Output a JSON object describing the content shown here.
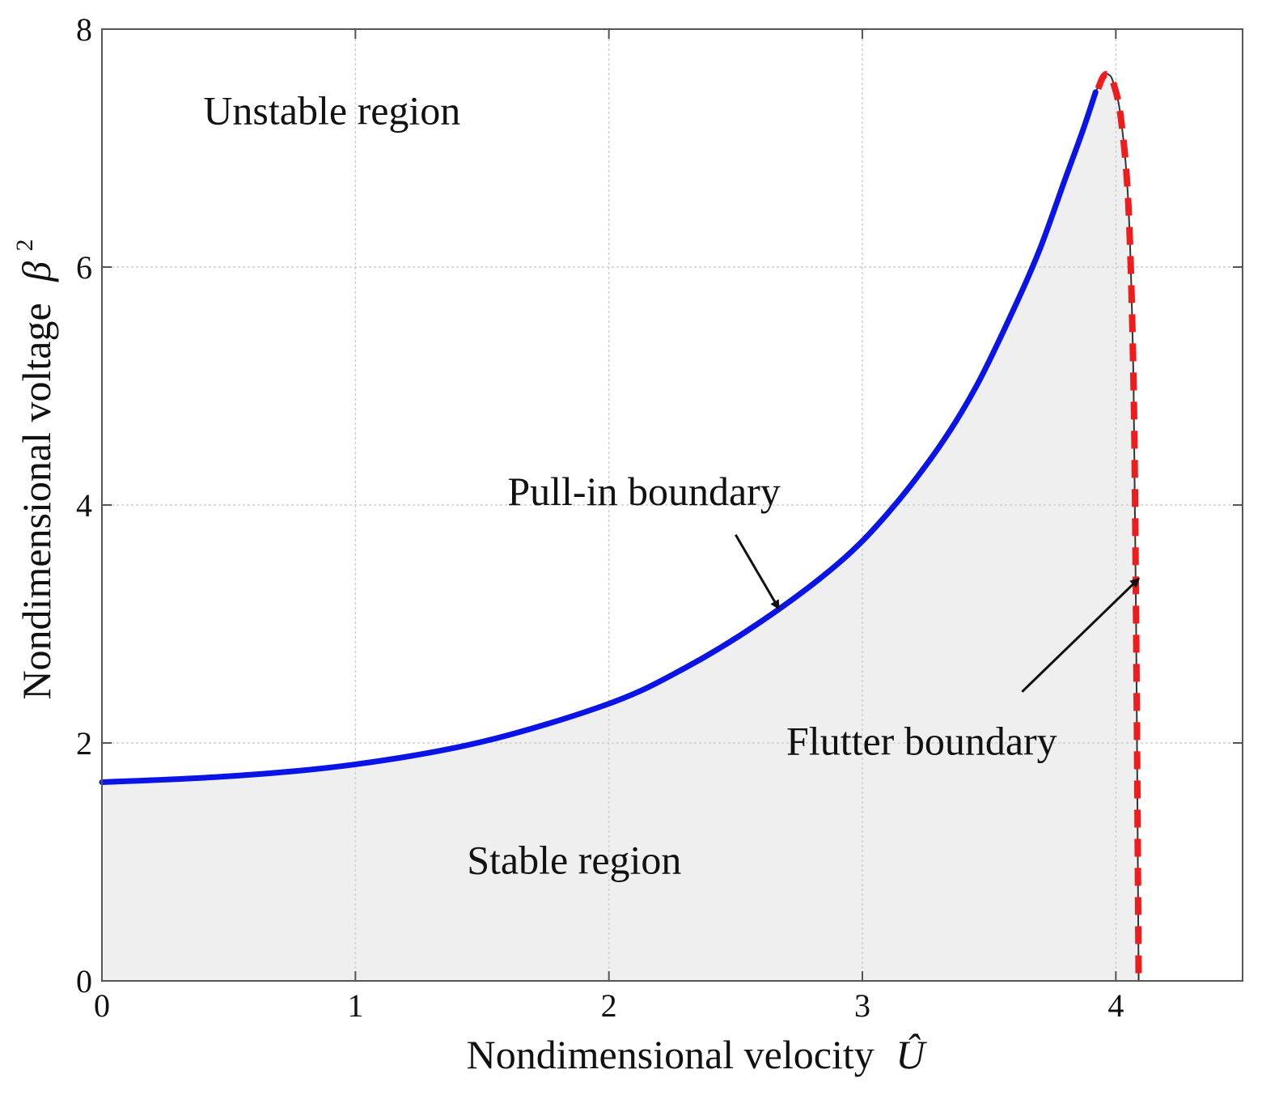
{
  "chart_data": {
    "type": "line",
    "title": "",
    "xlabel": "Nondimensional velocity",
    "xlabel_symbol": "Û",
    "ylabel": "Nondimensional voltage",
    "ylabel_symbol": "β",
    "ylabel_superscript": "2",
    "xlim": [
      0,
      4.5
    ],
    "ylim": [
      0,
      8
    ],
    "xticks": [
      0,
      1,
      2,
      3,
      4
    ],
    "yticks": [
      0,
      2,
      4,
      6,
      8
    ],
    "grid": true,
    "legend": "none",
    "series": [
      {
        "color": "#0a14e6",
        "style": "solid",
        "x": [
          0,
          0.5,
          1.0,
          1.5,
          2.0,
          2.3,
          2.6,
          2.9,
          3.1,
          3.3,
          3.45,
          3.6,
          3.7,
          3.8,
          3.87,
          3.92
        ],
        "y": [
          1.67,
          1.72,
          1.82,
          2.01,
          2.33,
          2.63,
          3.02,
          3.5,
          3.93,
          4.48,
          5.0,
          5.66,
          6.15,
          6.74,
          7.15,
          7.47
        ]
      },
      {
        "color": "#ee1c1c",
        "style": "dashed",
        "x": [
          3.93,
          3.95,
          3.97,
          3.99,
          4.02,
          4.05,
          4.07,
          4.08,
          4.09
        ],
        "y": [
          7.5,
          7.6,
          7.62,
          7.55,
          7.25,
          6.5,
          5.0,
          3.0,
          0.0
        ]
      },
      {
        "color": "#333333",
        "style": "thin",
        "x": [
          3.92,
          3.95,
          3.97,
          3.99,
          4.02,
          4.05,
          4.07,
          4.08,
          4.09
        ],
        "y": [
          7.47,
          7.6,
          7.62,
          7.55,
          7.25,
          6.5,
          5.0,
          3.0,
          0.0
        ]
      }
    ],
    "stable_fill_color": "#efefef",
    "annotations": [
      {
        "text": "Unstable region",
        "x": 0.4,
        "y": 7.2
      },
      {
        "text": "Pull-in boundary",
        "x": 1.6,
        "y": 4.0
      },
      {
        "text": "Flutter boundary",
        "x": 2.7,
        "y": 1.9
      },
      {
        "text": "Stable region",
        "x": 1.44,
        "y": 0.9
      }
    ],
    "arrows": [
      {
        "from": [
          2.5,
          3.75
        ],
        "to": [
          2.67,
          3.13
        ]
      },
      {
        "from": [
          3.63,
          2.43
        ],
        "to": [
          4.09,
          3.38
        ]
      }
    ]
  }
}
